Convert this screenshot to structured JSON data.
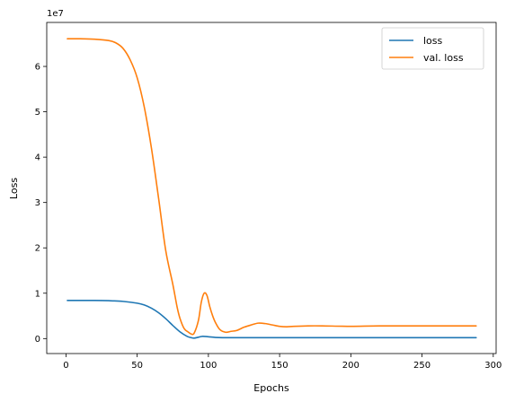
{
  "chart_data": {
    "type": "line",
    "xlabel": "Epochs",
    "ylabel": "Loss",
    "offset_label": "1e7",
    "xlim": [
      -13.5,
      302
    ],
    "ylim": [
      -0.33,
      6.97
    ],
    "x_ticks": [
      0,
      50,
      100,
      150,
      200,
      250,
      300
    ],
    "y_ticks": [
      0,
      1,
      2,
      3,
      4,
      5,
      6
    ],
    "legend_position": "top-right",
    "grid": false,
    "series": [
      {
        "name": "loss",
        "color": "#1f77b4",
        "x": [
          1,
          10,
          20,
          30,
          40,
          50,
          55,
          60,
          65,
          70,
          75,
          80,
          85,
          88,
          90,
          93,
          96,
          100,
          105,
          110,
          120,
          140,
          160,
          200,
          250,
          288
        ],
        "y": [
          0.84,
          0.84,
          0.84,
          0.835,
          0.82,
          0.78,
          0.74,
          0.67,
          0.57,
          0.44,
          0.29,
          0.15,
          0.05,
          0.02,
          0.01,
          0.03,
          0.05,
          0.04,
          0.025,
          0.02,
          0.02,
          0.02,
          0.02,
          0.02,
          0.02,
          0.02
        ]
      },
      {
        "name": "val. loss",
        "color": "#ff7f0e",
        "x": [
          1,
          10,
          20,
          30,
          35,
          40,
          45,
          50,
          55,
          60,
          65,
          70,
          75,
          78,
          80,
          83,
          86,
          88,
          90,
          93,
          95,
          97,
          99,
          101,
          103,
          105,
          108,
          112,
          116,
          120,
          125,
          130,
          135,
          140,
          145,
          150,
          155,
          160,
          170,
          180,
          200,
          220,
          250,
          288
        ],
        "y": [
          6.61,
          6.61,
          6.6,
          6.57,
          6.52,
          6.4,
          6.15,
          5.75,
          5.1,
          4.2,
          3.1,
          1.95,
          1.2,
          0.7,
          0.45,
          0.22,
          0.14,
          0.1,
          0.12,
          0.4,
          0.8,
          1.0,
          0.95,
          0.7,
          0.5,
          0.35,
          0.2,
          0.14,
          0.16,
          0.18,
          0.25,
          0.3,
          0.34,
          0.33,
          0.3,
          0.27,
          0.26,
          0.27,
          0.28,
          0.28,
          0.27,
          0.28,
          0.28,
          0.28
        ]
      }
    ]
  }
}
